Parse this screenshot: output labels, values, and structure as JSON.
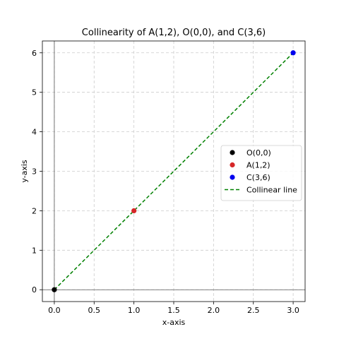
{
  "chart_data": {
    "type": "scatter",
    "title": "Collinearity of A(1,2), O(0,0), and C(3,6)",
    "xlabel": "x-axis",
    "ylabel": "y-axis",
    "xlim": [
      -0.15,
      3.15
    ],
    "ylim": [
      -0.3,
      6.3
    ],
    "xticks": [
      0.0,
      0.5,
      1.0,
      1.5,
      2.0,
      2.5,
      3.0
    ],
    "xtick_labels": [
      "0.0",
      "0.5",
      "1.0",
      "1.5",
      "2.0",
      "2.5",
      "3.0"
    ],
    "yticks": [
      0,
      1,
      2,
      3,
      4,
      5,
      6
    ],
    "ytick_labels": [
      "0",
      "1",
      "2",
      "3",
      "4",
      "5",
      "6"
    ],
    "grid": true,
    "legend_position": "center-right",
    "zero_lines": true,
    "series": [
      {
        "name": "O(0,0)",
        "kind": "point",
        "x": [
          0
        ],
        "y": [
          0
        ],
        "color": "#000000"
      },
      {
        "name": "A(1,2)",
        "kind": "point",
        "x": [
          1
        ],
        "y": [
          2
        ],
        "color": "#d62728"
      },
      {
        "name": "C(3,6)",
        "kind": "point",
        "x": [
          3
        ],
        "y": [
          6
        ],
        "color": "#0000ee"
      },
      {
        "name": "Collinear line",
        "kind": "dashed-line",
        "x": [
          0,
          3
        ],
        "y": [
          0,
          6
        ],
        "color": "#008000"
      }
    ]
  }
}
